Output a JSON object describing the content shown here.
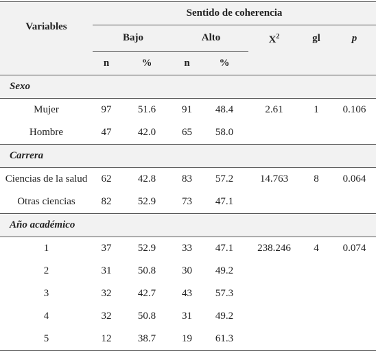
{
  "header": {
    "variables": "Variables",
    "group": "Sentido de coherencia",
    "low": "Bajo",
    "high": "Alto",
    "chi": "X",
    "chi_sup": "2",
    "gl": "gl",
    "p": "p",
    "subheads": [
      "n",
      "%",
      "n",
      "%"
    ]
  },
  "sections": [
    {
      "title": "Sexo",
      "stats": [
        "2.61",
        "1",
        "0.106"
      ],
      "rows": [
        [
          "Mujer",
          "97",
          "51.6",
          "91",
          "48.4"
        ],
        [
          "Hombre",
          "47",
          "42.0",
          "65",
          "58.0"
        ]
      ]
    },
    {
      "title": "Carrera",
      "stats": [
        "14.763",
        "8",
        "0.064"
      ],
      "rows": [
        [
          "Ciencias de la salud",
          "62",
          "42.8",
          "83",
          "57.2"
        ],
        [
          "Otras ciencias",
          "82",
          "52.9",
          "73",
          "47.1"
        ]
      ]
    },
    {
      "title": "Año académico",
      "stats": [
        "238.246",
        "4",
        "0.074"
      ],
      "rows": [
        [
          "1",
          "37",
          "52.9",
          "33",
          "47.1"
        ],
        [
          "2",
          "31",
          "50.8",
          "30",
          "49.2"
        ],
        [
          "3",
          "32",
          "42.7",
          "43",
          "57.3"
        ],
        [
          "4",
          "32",
          "50.8",
          "31",
          "49.2"
        ],
        [
          "5",
          "12",
          "38.7",
          "19",
          "61.3"
        ]
      ]
    }
  ]
}
